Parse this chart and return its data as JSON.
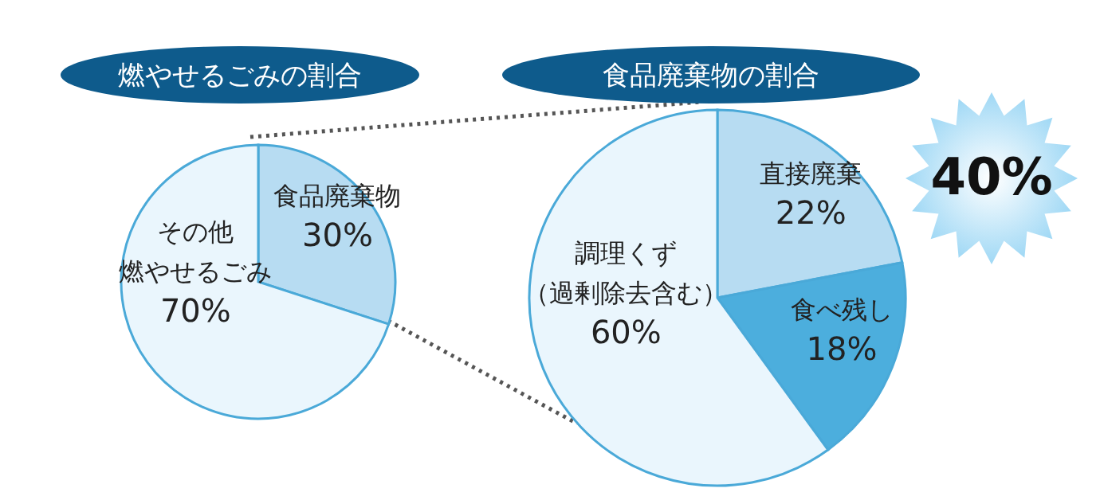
{
  "chart_data": [
    {
      "type": "pie",
      "title": "燃やせるごみの割合",
      "categories": [
        "食品廃棄物",
        "その他燃やせるごみ"
      ],
      "values": [
        30,
        70
      ],
      "colors": [
        "#b7dcf2",
        "#eaf6fd"
      ],
      "value_labels": [
        "30%",
        "70%"
      ]
    },
    {
      "type": "pie",
      "title": "食品廃棄物の割合",
      "categories": [
        "直接廃棄",
        "食べ残し",
        "調理くず（過剰除去含む）"
      ],
      "values": [
        22,
        18,
        60
      ],
      "colors": [
        "#b7dcf2",
        "#4caedd",
        "#eaf6fd"
      ],
      "value_labels": [
        "22%",
        "18%",
        "60%"
      ],
      "annotations": [
        "40%"
      ]
    }
  ]
}
